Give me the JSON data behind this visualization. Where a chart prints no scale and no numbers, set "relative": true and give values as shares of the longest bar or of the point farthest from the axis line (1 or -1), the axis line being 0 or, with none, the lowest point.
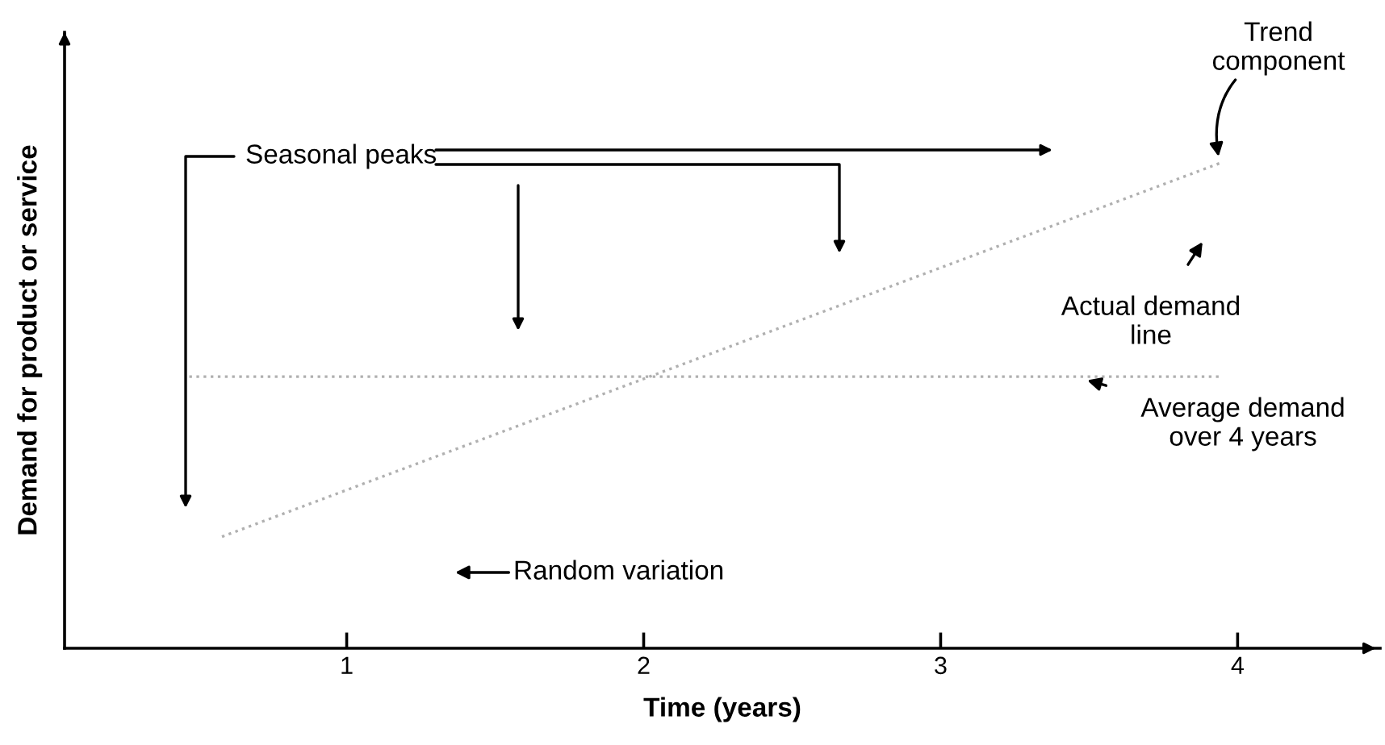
{
  "chart_data": {
    "type": "line",
    "relative": true,
    "xlabel": "Time (years)",
    "ylabel": "Demand for product or service",
    "xlim": [
      0.05,
      4.48
    ],
    "xticks": [
      1,
      2,
      3,
      4
    ],
    "tick_labels": "x",
    "grid": false,
    "legend": false,
    "line_style": "dotted",
    "series": [
      {
        "color": "#b0b0b0",
        "x": [
          0.58,
          3.94
        ],
        "values": [
          0.23,
          1
        ]
      },
      {
        "color": "#b0b0b0",
        "x": [
          0.47,
          3.95
        ],
        "values": [
          0.56,
          0.56
        ]
      }
    ],
    "annotations": [
      "Seasonal peaks",
      "Random variation",
      {
        "text": "Trend\ncomponent",
        "x": 3.94,
        "y": 1
      },
      "Actual demand\nline",
      {
        "text": "Average demand\nover 4 years",
        "x": 3.45,
        "y": 0.56
      }
    ]
  }
}
